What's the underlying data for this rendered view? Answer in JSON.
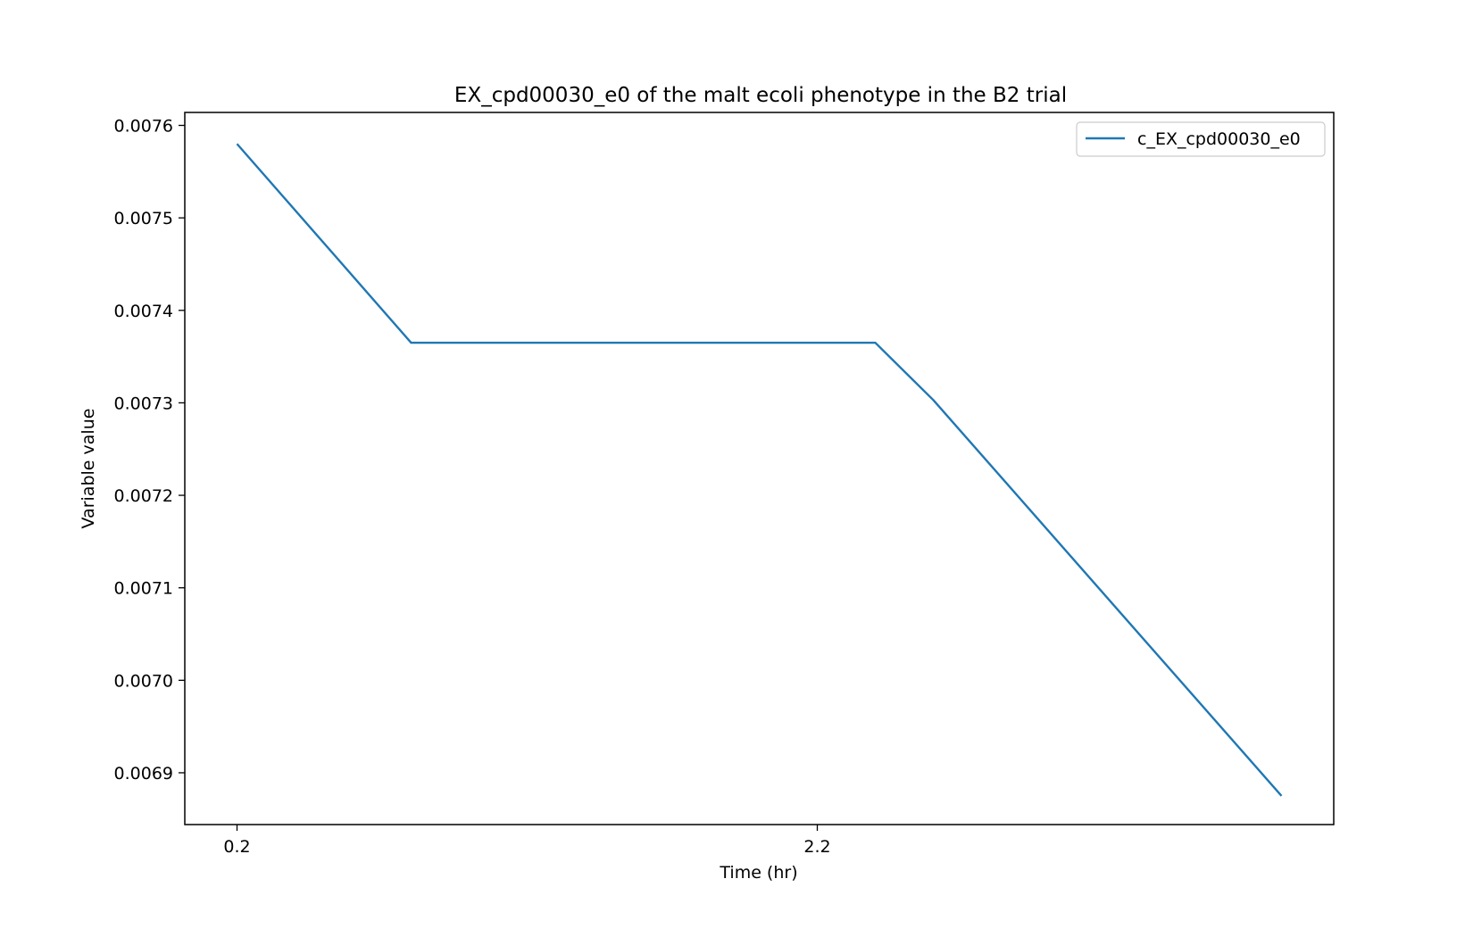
{
  "chart_data": {
    "type": "line",
    "title": "EX_cpd00030_e0 of the malt ecoli phenotype in the B2 trial",
    "xlabel": "Time (hr)",
    "ylabel": "Variable value",
    "xlim": [
      0.02,
      3.98
    ],
    "ylim": [
      0.006844,
      0.007614
    ],
    "xticks": [
      0.2,
      2.2
    ],
    "xtick_labels": [
      "0.2",
      "2.2"
    ],
    "yticks": [
      0.0069,
      0.007,
      0.0071,
      0.0072,
      0.0073,
      0.0074,
      0.0075,
      0.0076
    ],
    "ytick_labels": [
      "0.0069",
      "0.0070",
      "0.0071",
      "0.0072",
      "0.0073",
      "0.0074",
      "0.0075",
      "0.0076"
    ],
    "grid": false,
    "legend_position": "top-right",
    "series": [
      {
        "name": "c_EX_cpd00030_e0",
        "color": "#1f77b4",
        "x": [
          0.2,
          0.8,
          2.4,
          2.6,
          3.8
        ],
        "y": [
          0.00758,
          0.007365,
          0.007365,
          0.007303,
          0.006875
        ]
      }
    ]
  }
}
